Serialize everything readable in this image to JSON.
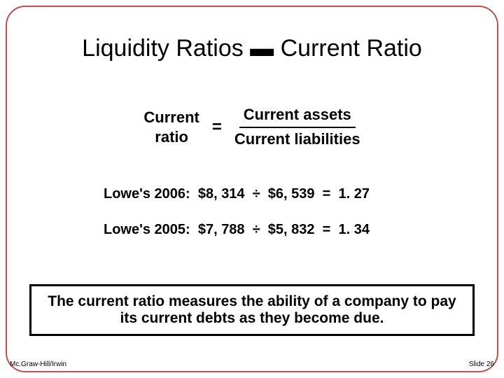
{
  "slide": {
    "border_color": "#c0504d",
    "background_color": "#ffffff",
    "title": "Liquidity Ratios ▬ Current Ratio",
    "title_fontsize": 34
  },
  "formula": {
    "lhs_line1": "Current",
    "lhs_line2": "ratio",
    "equals": "=",
    "numerator": "Current assets",
    "denominator": "Current liabilities",
    "fontsize": 22
  },
  "examples": {
    "fontsize": 20,
    "lines": [
      {
        "label": "Lowe's 2006:",
        "assets": "$8, 314",
        "op": "÷",
        "liabilities": "$6, 539",
        "eq": "=",
        "result": "1. 27"
      },
      {
        "label": "Lowe's 2005:",
        "assets": "$7, 788",
        "op": "÷",
        "liabilities": "$5, 832",
        "eq": "=",
        "result": "1. 34"
      }
    ]
  },
  "callout": {
    "text": "The current ratio measures the ability of a company  to pay its current debts as they become due.",
    "fontsize": 21,
    "border_color": "#000000"
  },
  "footer": {
    "left": "Mc.Graw-Hill/Irwin",
    "right": "Slide 26",
    "fontsize": 10
  }
}
